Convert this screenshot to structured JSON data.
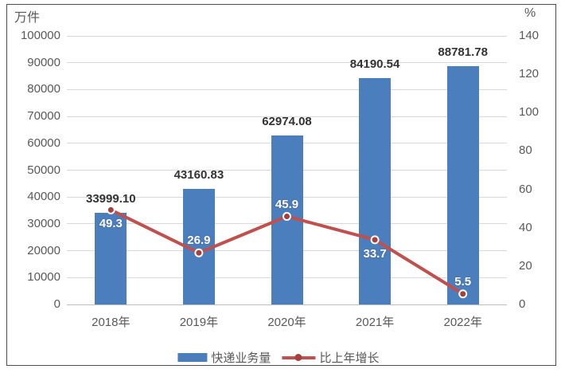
{
  "chart_data": {
    "type": "bar",
    "combo": "bar+line",
    "title": "",
    "categories": [
      "2018年",
      "2019年",
      "2020年",
      "2021年",
      "2022年"
    ],
    "series": [
      {
        "name": "快递业务量",
        "type": "bar",
        "axis": "left",
        "values": [
          33999.1,
          43160.83,
          62974.08,
          84190.54,
          88781.78
        ],
        "labels": [
          "33999.10",
          "43160.83",
          "62974.08",
          "84190.54",
          "88781.78"
        ],
        "color": "#4a7ebd"
      },
      {
        "name": "比上年增长",
        "type": "line",
        "axis": "right",
        "values": [
          49.3,
          26.9,
          45.9,
          33.7,
          5.5
        ],
        "labels": [
          "49.3",
          "26.9",
          "45.9",
          "33.7",
          "5.5"
        ],
        "label_side": [
          "below",
          "above",
          "above",
          "below",
          "above"
        ],
        "color": "#c0504d",
        "marker_fill": "#a5403e",
        "marker_ring": "#ffffff",
        "label_color": "#ffffff"
      }
    ],
    "left_axis": {
      "title": "万件",
      "min": 0,
      "max": 100000,
      "step": 10000,
      "ticks": [
        "100000",
        "90000",
        "80000",
        "70000",
        "60000",
        "50000",
        "40000",
        "30000",
        "20000",
        "10000",
        "0"
      ]
    },
    "right_axis": {
      "title": "%",
      "min": 0,
      "max": 140,
      "step": 20,
      "ticks": [
        "140",
        "120",
        "100",
        "80",
        "60",
        "40",
        "20",
        "0"
      ]
    },
    "grid": true,
    "gridline_color": "#d9d9d9",
    "legend_position": "bottom",
    "legend": [
      "快递业务量",
      "比上年增长"
    ]
  }
}
